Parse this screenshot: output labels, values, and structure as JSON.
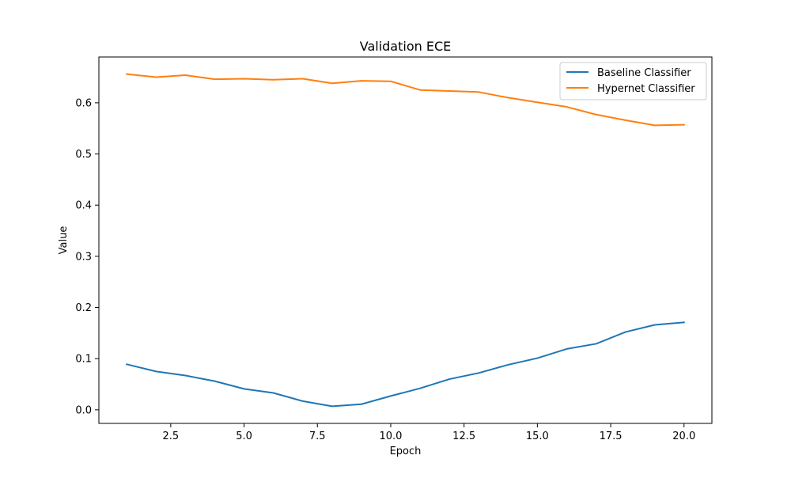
{
  "chart_data": {
    "type": "line",
    "title": "Validation ECE",
    "xlabel": "Epoch",
    "ylabel": "Value",
    "xlim": [
      0.05,
      20.95
    ],
    "ylim": [
      -0.0265,
      0.6895
    ],
    "xticks": [
      2.5,
      5.0,
      7.5,
      10.0,
      12.5,
      15.0,
      17.5,
      20.0
    ],
    "xtick_labels": [
      "2.5",
      "5.0",
      "7.5",
      "10.0",
      "12.5",
      "15.0",
      "17.5",
      "20.0"
    ],
    "yticks": [
      0.0,
      0.1,
      0.2,
      0.3,
      0.4,
      0.5,
      0.6
    ],
    "ytick_labels": [
      "0.0",
      "0.1",
      "0.2",
      "0.3",
      "0.4",
      "0.5",
      "0.6"
    ],
    "grid": false,
    "legend_position": "top-right",
    "x": [
      1,
      2,
      3,
      4,
      5,
      6,
      7,
      8,
      9,
      10,
      11,
      12,
      13,
      14,
      15,
      16,
      17,
      18,
      19,
      20
    ],
    "series": [
      {
        "name": "Baseline Classifier",
        "color": "#1f77b4",
        "values": [
          0.089,
          0.075,
          0.067,
          0.056,
          0.041,
          0.033,
          0.017,
          0.007,
          0.011,
          0.027,
          0.042,
          0.06,
          0.072,
          0.088,
          0.101,
          0.119,
          0.129,
          0.152,
          0.166,
          0.171
        ]
      },
      {
        "name": "Hypernet Classifier",
        "color": "#ff7f0e",
        "values": [
          0.656,
          0.65,
          0.654,
          0.646,
          0.647,
          0.645,
          0.647,
          0.638,
          0.643,
          0.642,
          0.625,
          0.623,
          0.621,
          0.61,
          0.601,
          0.592,
          0.577,
          0.566,
          0.556,
          0.557
        ]
      }
    ]
  }
}
